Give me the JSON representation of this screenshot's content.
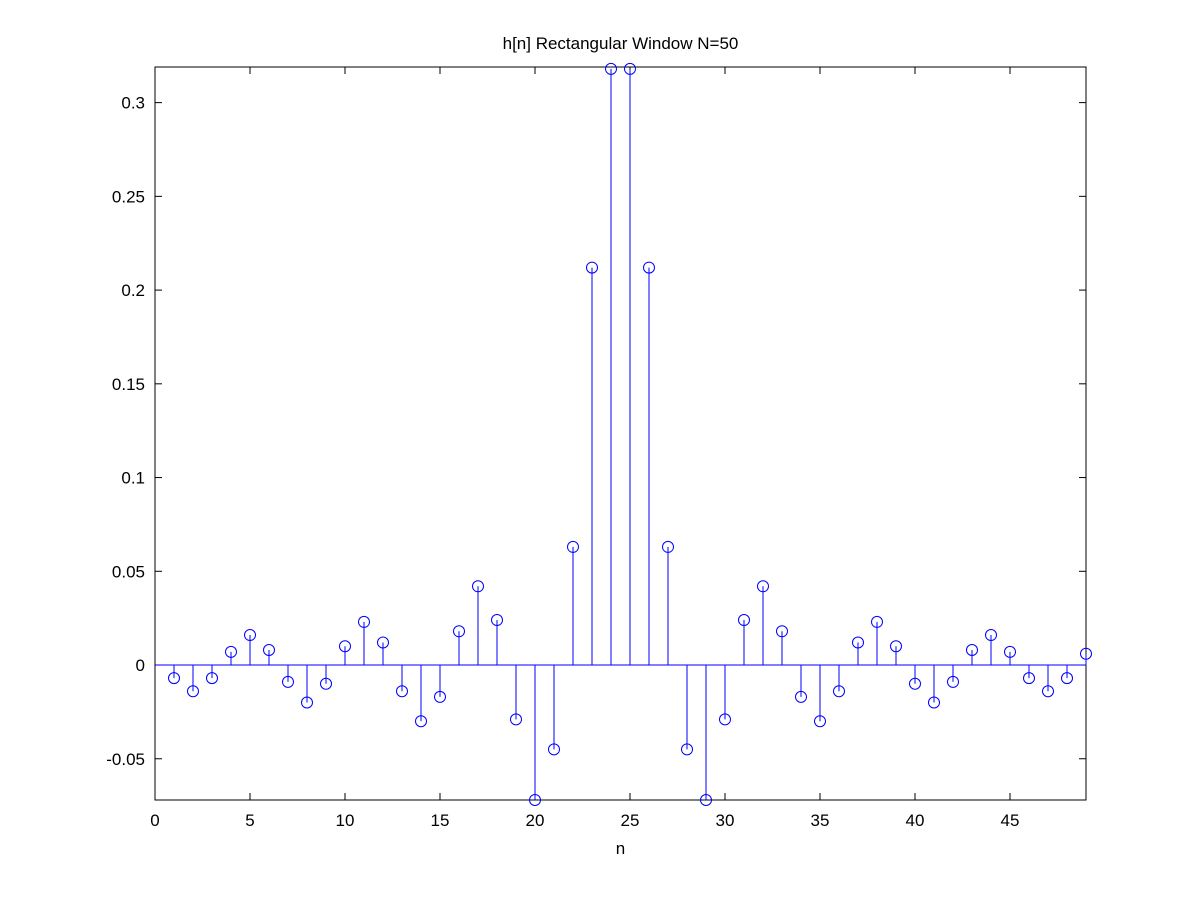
{
  "chart_data": {
    "type": "stem",
    "title": "h[n] Rectangular Window N=50",
    "xlabel": "n",
    "ylabel": "",
    "xlim": [
      0,
      49
    ],
    "ylim": [
      -0.072,
      0.319
    ],
    "xticks": [
      0,
      5,
      10,
      15,
      20,
      25,
      30,
      35,
      40,
      45
    ],
    "yticks": [
      -0.05,
      0,
      0.05,
      0.1,
      0.15,
      0.2,
      0.25,
      0.3
    ],
    "ytick_labels": [
      "-0.05",
      "0",
      "0.05",
      "0.1",
      "0.15",
      "0.2",
      "0.25",
      "0.3"
    ],
    "grid": false,
    "color": "#0000ff",
    "x": [
      1,
      2,
      3,
      4,
      5,
      6,
      7,
      8,
      9,
      10,
      11,
      12,
      13,
      14,
      15,
      16,
      17,
      18,
      19,
      20,
      21,
      22,
      23,
      24,
      25,
      26,
      27,
      28,
      29,
      30,
      31,
      32,
      33,
      34,
      35,
      36,
      37,
      38,
      39,
      40,
      41,
      42,
      43,
      44,
      45,
      46,
      47,
      48,
      49
    ],
    "y": [
      -0.007,
      -0.014,
      -0.007,
      0.007,
      0.016,
      0.008,
      -0.009,
      -0.02,
      -0.01,
      0.01,
      0.023,
      0.012,
      -0.014,
      -0.03,
      -0.017,
      0.018,
      0.042,
      0.024,
      -0.029,
      -0.072,
      -0.045,
      0.063,
      0.212,
      0.318,
      0.318,
      0.212,
      0.063,
      -0.045,
      -0.072,
      -0.029,
      0.024,
      0.042,
      0.018,
      -0.017,
      -0.03,
      -0.014,
      0.012,
      0.023,
      0.01,
      -0.01,
      -0.02,
      -0.009,
      0.008,
      0.016,
      0.007,
      -0.007,
      -0.014,
      -0.007,
      0.006
    ]
  }
}
